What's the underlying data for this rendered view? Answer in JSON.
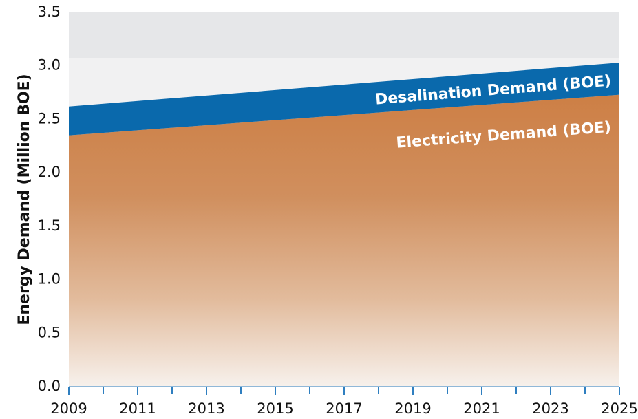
{
  "chart_data": {
    "type": "stacked_area",
    "y_label": "Energy Demand (Million BOE)",
    "x": [
      2009,
      2025
    ],
    "series": [
      {
        "name": "Electricity Demand (BOE)",
        "color": "#cd7f45",
        "values": [
          2.35,
          2.73
        ]
      },
      {
        "name": "Desalination Demand (BOE)",
        "color": "#0a69ac",
        "values": [
          0.27,
          0.3
        ]
      }
    ],
    "xlim": [
      2009,
      2025
    ],
    "xticks": [
      2009,
      2011,
      2013,
      2015,
      2017,
      2019,
      2021,
      2023,
      2025
    ],
    "ylim": [
      0,
      3.5
    ],
    "yticks": [
      {
        "value": 0,
        "label": "0.0"
      },
      0.5,
      {
        "value": 1,
        "label": "1.0"
      },
      1.5,
      {
        "value": 2,
        "label": "2.0"
      },
      2.5,
      {
        "value": 3,
        "label": "3.0"
      },
      3.5
    ]
  }
}
